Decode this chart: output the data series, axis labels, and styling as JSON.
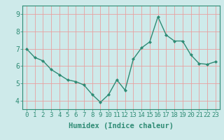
{
  "x": [
    0,
    1,
    2,
    3,
    4,
    5,
    6,
    7,
    8,
    9,
    10,
    11,
    12,
    13,
    14,
    15,
    16,
    17,
    18,
    19,
    20,
    21,
    22,
    23
  ],
  "y": [
    7.0,
    6.5,
    6.3,
    5.8,
    5.5,
    5.2,
    5.1,
    4.9,
    4.35,
    3.9,
    4.35,
    5.2,
    4.6,
    6.4,
    7.05,
    7.4,
    8.85,
    7.8,
    7.45,
    7.45,
    6.65,
    6.15,
    6.1,
    6.25
  ],
  "line_color": "#2e8b74",
  "marker": "D",
  "marker_size": 2.0,
  "bg_color": "#ceeaea",
  "grid_color": "#b0d8d8",
  "xlabel": "Humidex (Indice chaleur)",
  "xlabel_fontsize": 7.5,
  "ylabel_ticks": [
    4,
    5,
    6,
    7,
    8,
    9
  ],
  "xtick_labels": [
    "0",
    "1",
    "2",
    "3",
    "4",
    "5",
    "6",
    "7",
    "8",
    "9",
    "10",
    "11",
    "12",
    "13",
    "14",
    "15",
    "16",
    "17",
    "18",
    "19",
    "20",
    "21",
    "22",
    "23"
  ],
  "ylim": [
    3.5,
    9.5
  ],
  "xlim": [
    -0.5,
    23.5
  ],
  "tick_fontsize": 6.5,
  "spine_color": "#2e8b74",
  "line_width": 1.0
}
